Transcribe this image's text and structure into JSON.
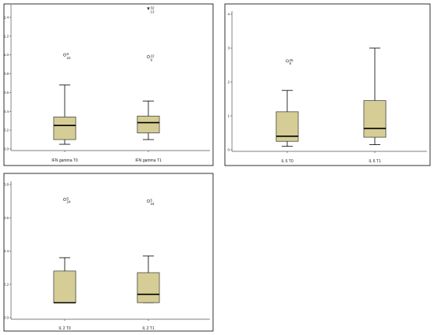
{
  "colors": {
    "box_fill": "#d5cd95",
    "frame": "#000000"
  },
  "chart_data": [
    {
      "type": "boxplot",
      "title": "",
      "xlabel": "",
      "ylabel": "",
      "ylim": [
        0,
        1.5
      ],
      "yticks": [
        "0.0",
        "0.2",
        "0.4",
        "0.6",
        "0.8",
        "1.0",
        "1.2",
        "1.4"
      ],
      "yticks_values": [
        0,
        0.2,
        0.4,
        0.6,
        0.8,
        1.0,
        1.2,
        1.4
      ],
      "categories": [
        "IFN gamma T0",
        "IFN gamma T1"
      ],
      "boxes": [
        {
          "min": 0.05,
          "q1": 0.1,
          "median": 0.25,
          "q3": 0.34,
          "max": 0.68,
          "outliers": [
            {
              "value": 1.0,
              "label": "9",
              "kind": "circle"
            },
            {
              "value": 0.96,
              "label": "22",
              "kind": "none"
            }
          ]
        },
        {
          "min": 0.1,
          "q1": 0.17,
          "median": 0.28,
          "q3": 0.35,
          "max": 0.51,
          "outliers": [
            {
              "value": 1.49,
              "label": "32",
              "kind": "star"
            },
            {
              "value": 1.45,
              "label": "13",
              "kind": "none"
            },
            {
              "value": 0.98,
              "label": "22",
              "kind": "circle"
            },
            {
              "value": 0.94,
              "label": "9",
              "kind": "none"
            }
          ]
        }
      ]
    },
    {
      "type": "boxplot",
      "title": "",
      "xlabel": "",
      "ylabel": "",
      "ylim": [
        0,
        4
      ],
      "yticks": [
        "0",
        "1",
        "2",
        "3",
        "4"
      ],
      "yticks_values": [
        0,
        1,
        2,
        3,
        4
      ],
      "categories": [
        "IL 6 T0",
        "IL 6 T1"
      ],
      "boxes": [
        {
          "min": 0.1,
          "q1": 0.25,
          "median": 0.4,
          "q3": 1.12,
          "max": 1.75,
          "outliers": [
            {
              "value": 2.62,
              "label": "25",
              "kind": "circle"
            },
            {
              "value": 2.52,
              "label": "9",
              "kind": "none"
            }
          ]
        },
        {
          "min": 0.15,
          "q1": 0.37,
          "median": 0.63,
          "q3": 1.45,
          "max": 3.0,
          "outliers": []
        }
      ]
    },
    {
      "type": "boxplot",
      "title": "",
      "xlabel": "",
      "ylabel": "",
      "ylim": [
        0,
        0.8
      ],
      "yticks": [
        "0.0",
        "0.2",
        "0.4",
        "0.6",
        "0.8"
      ],
      "yticks_values": [
        0,
        0.2,
        0.4,
        0.6,
        0.8
      ],
      "categories": [
        "IL 2 T0",
        "IL 2 T1"
      ],
      "boxes": [
        {
          "min": 0.09,
          "q1": 0.09,
          "median": 0.09,
          "q3": 0.28,
          "max": 0.36,
          "outliers": [
            {
              "value": 0.71,
              "label": "5",
              "kind": "circle"
            },
            {
              "value": 0.69,
              "label": "24",
              "kind": "none"
            }
          ]
        },
        {
          "min": 0.09,
          "q1": 0.09,
          "median": 0.14,
          "q3": 0.27,
          "max": 0.37,
          "outliers": [
            {
              "value": 0.7,
              "label": "5",
              "kind": "circle"
            },
            {
              "value": 0.68,
              "label": "24",
              "kind": "none"
            }
          ]
        }
      ]
    }
  ]
}
